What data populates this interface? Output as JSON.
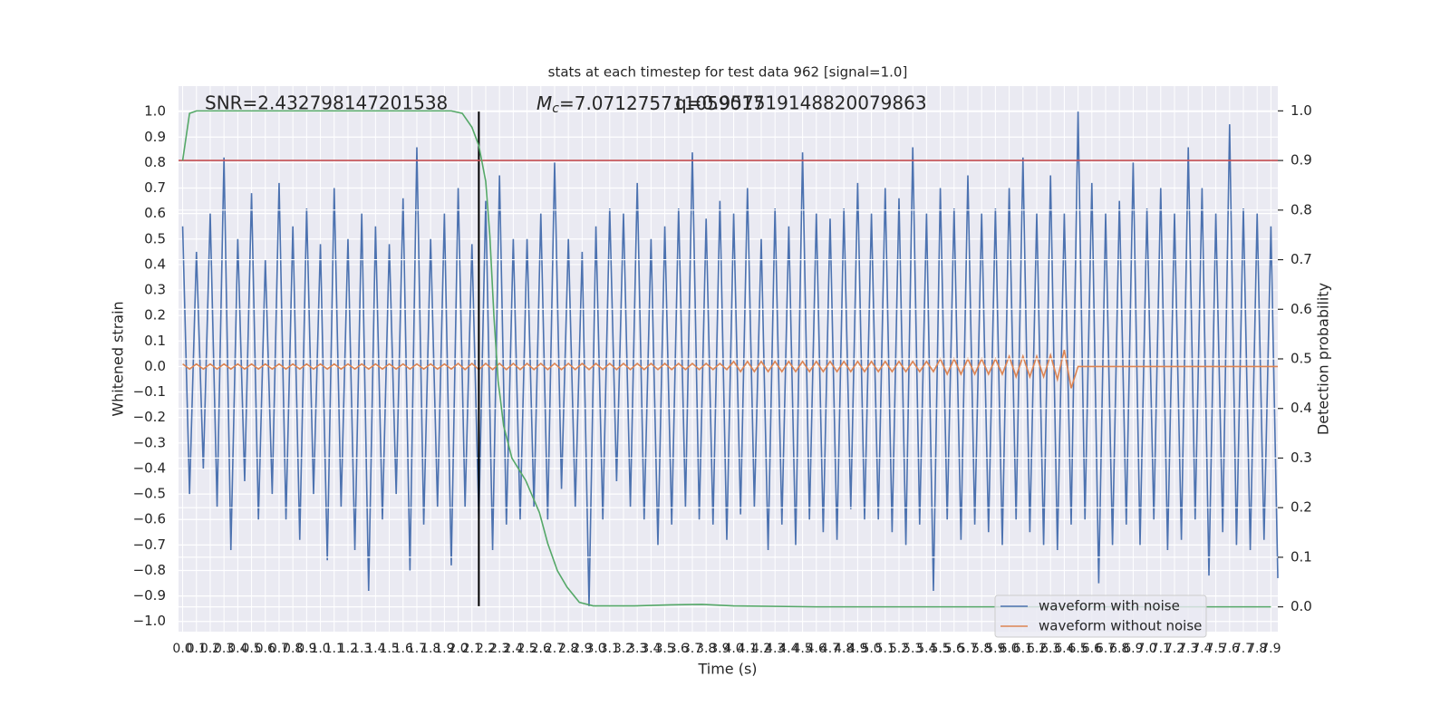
{
  "chart_data": {
    "type": "line",
    "title": "stats at each timestep for test data 962 [signal=1.0]",
    "xlabel": "Time (s)",
    "ylabel": "Whitened strain",
    "y2label": "Detection probability",
    "annotations": [
      {
        "text": "SNR=2.432798147201538"
      },
      {
        "symbol": "M",
        "subscript": "c",
        "text": "=7.071275711059017"
      },
      {
        "text": "q=0.957519148820079863"
      }
    ],
    "xlim": [
      -0.03,
      7.95
    ],
    "ylim": [
      -1.04,
      1.1
    ],
    "y2lim": [
      -0.05,
      1.05
    ],
    "grid": true,
    "legend": "lower right",
    "vline": {
      "x": 2.15,
      "color": "#000000"
    },
    "hline": {
      "y": 0.9,
      "axis": "y2",
      "color": "#c44e52"
    },
    "xticks": [
      {
        "value": 0,
        "label": "0.0"
      },
      0.1,
      0.2,
      0.3,
      0.4,
      0.5,
      0.6,
      0.7,
      0.8,
      0.9,
      {
        "value": 1,
        "label": "1.0"
      },
      1.1,
      1.2,
      1.3,
      1.4,
      1.5,
      1.6,
      1.7,
      1.8,
      1.9,
      {
        "value": 2,
        "label": "2.0"
      },
      2.1,
      2.2,
      2.3,
      2.4,
      2.5,
      2.6,
      2.7,
      2.8,
      2.9,
      {
        "value": 3,
        "label": "3.0"
      },
      3.1,
      3.2,
      3.3,
      3.4,
      3.5,
      3.6,
      3.7,
      3.8,
      3.9,
      {
        "value": 4,
        "label": "4.0"
      },
      4.1,
      4.2,
      4.3,
      4.4,
      4.5,
      4.6,
      4.7,
      4.8,
      4.9,
      {
        "value": 5,
        "label": "5.0"
      },
      5.1,
      5.2,
      5.3,
      5.4,
      5.5,
      5.6,
      5.7,
      5.8,
      5.9,
      {
        "value": 6,
        "label": "6.0"
      },
      6.1,
      6.2,
      6.3,
      6.4,
      6.5,
      6.6,
      6.7,
      6.8,
      6.9,
      {
        "value": 7,
        "label": "7.0"
      },
      7.1,
      7.2,
      7.3,
      7.4,
      7.5,
      7.6,
      7.7,
      7.8,
      7.9
    ],
    "yticks": [
      {
        "value": -1,
        "label": "−1.0"
      },
      {
        "value": -0.9,
        "label": "−0.9"
      },
      {
        "value": -0.8,
        "label": "−0.8"
      },
      {
        "value": -0.7,
        "label": "−0.7"
      },
      {
        "value": -0.6,
        "label": "−0.6"
      },
      {
        "value": -0.5,
        "label": "−0.5"
      },
      {
        "value": -0.4,
        "label": "−0.4"
      },
      {
        "value": -0.3,
        "label": "−0.3"
      },
      {
        "value": -0.2,
        "label": "−0.2"
      },
      {
        "value": -0.1,
        "label": "−0.1"
      },
      {
        "value": 0,
        "label": "0.0"
      },
      0.1,
      0.2,
      0.3,
      0.4,
      0.5,
      0.6,
      0.7,
      0.8,
      0.9,
      {
        "value": 1,
        "label": "1.0"
      }
    ],
    "y2ticks": [
      {
        "value": 0,
        "label": "0.0"
      },
      0.1,
      0.2,
      0.3,
      0.4,
      0.5,
      0.6,
      0.7,
      0.8,
      0.9,
      {
        "value": 1,
        "label": "1.0"
      }
    ],
    "x": [
      0,
      0.05,
      0.1,
      0.15,
      0.2,
      0.25,
      0.3,
      0.35,
      0.4,
      0.45,
      0.5,
      0.55,
      0.6,
      0.65,
      0.7,
      0.75,
      0.8,
      0.85,
      0.9,
      0.95,
      1,
      1.05,
      1.1,
      1.15,
      1.2,
      1.25,
      1.3,
      1.35,
      1.4,
      1.45,
      1.5,
      1.55,
      1.6,
      1.65,
      1.7,
      1.75,
      1.8,
      1.85,
      1.9,
      1.95,
      2,
      2.05,
      2.1,
      2.15,
      2.2,
      2.25,
      2.3,
      2.35,
      2.4,
      2.45,
      2.5,
      2.55,
      2.6,
      2.65,
      2.7,
      2.75,
      2.8,
      2.85,
      2.9,
      2.95,
      3,
      3.05,
      3.1,
      3.15,
      3.2,
      3.25,
      3.3,
      3.35,
      3.4,
      3.45,
      3.5,
      3.55,
      3.6,
      3.65,
      3.7,
      3.75,
      3.8,
      3.85,
      3.9,
      3.95,
      4,
      4.05,
      4.1,
      4.15,
      4.2,
      4.25,
      4.3,
      4.35,
      4.4,
      4.45,
      4.5,
      4.55,
      4.6,
      4.65,
      4.7,
      4.75,
      4.8,
      4.85,
      4.9,
      4.95,
      5,
      5.05,
      5.1,
      5.15,
      5.2,
      5.25,
      5.3,
      5.35,
      5.4,
      5.45,
      5.5,
      5.55,
      5.6,
      5.65,
      5.7,
      5.75,
      5.8,
      5.85,
      5.9,
      5.95,
      6,
      6.05,
      6.1,
      6.15,
      6.2,
      6.25,
      6.3,
      6.35,
      6.4,
      6.45,
      6.5,
      6.55,
      6.6,
      6.65,
      6.7,
      6.75,
      6.8,
      6.85,
      6.9,
      6.95,
      7,
      7.05,
      7.1,
      7.15,
      7.2,
      7.25,
      7.3,
      7.35,
      7.4,
      7.45,
      7.5,
      7.55,
      7.6,
      7.65,
      7.7,
      7.75,
      7.8,
      7.85,
      7.9,
      7.95
    ],
    "series": [
      {
        "name": "waveform with noise",
        "color": "#4c72b0",
        "values": [
          0.55,
          -0.5,
          0.45,
          -0.4,
          0.6,
          -0.55,
          0.82,
          -0.72,
          0.5,
          -0.45,
          0.68,
          -0.6,
          0.42,
          -0.5,
          0.72,
          -0.6,
          0.55,
          -0.68,
          0.62,
          -0.5,
          0.48,
          -0.76,
          0.7,
          -0.55,
          0.5,
          -0.72,
          0.6,
          -0.88,
          0.55,
          -0.6,
          0.48,
          -0.5,
          0.66,
          -0.8,
          0.86,
          -0.62,
          0.5,
          -0.55,
          0.6,
          -0.78,
          0.7,
          -0.55,
          0.48,
          -0.6,
          0.65,
          -0.72,
          0.75,
          -0.62,
          0.5,
          -0.6,
          0.5,
          -0.55,
          0.6,
          -0.6,
          0.8,
          -0.48,
          0.5,
          -0.55,
          0.45,
          -0.94,
          0.55,
          -0.6,
          0.62,
          -0.45,
          0.6,
          -0.55,
          0.72,
          -0.6,
          0.5,
          -0.7,
          0.55,
          -0.62,
          0.62,
          -0.55,
          0.84,
          -0.6,
          0.58,
          -0.62,
          0.65,
          -0.68,
          0.6,
          -0.58,
          0.7,
          -0.55,
          0.5,
          -0.72,
          0.62,
          -0.62,
          0.55,
          -0.7,
          0.84,
          -0.6,
          0.6,
          -0.65,
          0.58,
          -0.68,
          0.62,
          -0.56,
          0.72,
          -0.6,
          0.6,
          -0.6,
          0.7,
          -0.65,
          0.66,
          -0.7,
          0.86,
          -0.62,
          0.6,
          -0.88,
          0.7,
          -0.6,
          0.62,
          -0.68,
          0.75,
          -0.62,
          0.6,
          -0.65,
          0.62,
          -0.7,
          0.7,
          -0.6,
          0.82,
          -0.65,
          0.6,
          -0.7,
          0.75,
          -0.72,
          0.6,
          -0.62,
          1.0,
          -0.6,
          0.72,
          -0.85,
          0.6,
          -0.7,
          0.65,
          -0.62,
          0.8,
          -0.7,
          0.62,
          -0.6,
          0.7,
          -0.72,
          0.6,
          -0.68,
          0.86,
          -0.6,
          0.7,
          -0.82,
          0.6,
          -0.65,
          0.95,
          -0.7,
          0.62,
          -0.72,
          0.6,
          -0.68,
          0.55,
          -0.83
        ]
      },
      {
        "name": "waveform without noise",
        "color": "#dd8452",
        "values": [
          0.01,
          -0.01,
          0.01,
          -0.01,
          0.01,
          -0.01,
          0.01,
          -0.01,
          0.01,
          -0.01,
          0.01,
          -0.01,
          0.01,
          -0.01,
          0.01,
          -0.01,
          0.01,
          -0.01,
          0.01,
          -0.01,
          0.01,
          -0.01,
          0.01,
          -0.01,
          0.01,
          -0.01,
          0.01,
          -0.01,
          0.01,
          -0.01,
          0.01,
          -0.01,
          0.01,
          -0.01,
          0.01,
          -0.01,
          0.01,
          -0.01,
          0.01,
          -0.01,
          0.012,
          -0.012,
          0.012,
          -0.012,
          0.012,
          -0.012,
          0.012,
          -0.012,
          0.012,
          -0.012,
          0.012,
          -0.012,
          0.012,
          -0.012,
          0.012,
          -0.012,
          0.012,
          -0.012,
          0.012,
          -0.012,
          0.012,
          -0.012,
          0.012,
          -0.012,
          0.012,
          -0.012,
          0.012,
          -0.012,
          0.012,
          -0.012,
          0.012,
          -0.012,
          0.012,
          -0.012,
          0.012,
          -0.012,
          0.012,
          -0.012,
          0.012,
          -0.012,
          0.02,
          -0.02,
          0.02,
          -0.02,
          0.02,
          -0.02,
          0.02,
          -0.02,
          0.02,
          -0.02,
          0.02,
          -0.02,
          0.02,
          -0.02,
          0.02,
          -0.02,
          0.02,
          -0.02,
          0.02,
          -0.02,
          0.02,
          -0.02,
          0.02,
          -0.02,
          0.02,
          -0.02,
          0.02,
          -0.02,
          0.02,
          -0.02,
          0.03,
          -0.03,
          0.03,
          -0.03,
          0.03,
          -0.03,
          0.03,
          -0.03,
          0.03,
          -0.03,
          0.04,
          -0.04,
          0.04,
          -0.04,
          0.04,
          -0.04,
          0.045,
          -0.05,
          0.065,
          -0.085,
          0,
          0,
          0,
          0,
          0,
          0,
          0,
          0,
          0,
          0,
          0,
          0,
          0,
          0,
          0,
          0,
          0,
          0,
          0,
          0,
          0,
          0,
          0,
          0,
          0,
          0,
          0,
          0,
          0,
          0
        ]
      },
      {
        "color": "#55a868",
        "axis": "y2",
        "x": [
          0,
          0.05,
          0.1,
          1.95,
          2.03,
          2.1,
          2.15,
          2.2,
          2.23,
          2.26,
          2.29,
          2.33,
          2.39,
          2.49,
          2.59,
          2.65,
          2.72,
          2.79,
          2.88,
          2.98,
          3.28,
          3.54,
          3.77,
          4.0,
          4.6,
          7.9
        ],
        "values": [
          0.9,
          0.995,
          1.0,
          1.0,
          0.995,
          0.967,
          0.93,
          0.858,
          0.748,
          0.584,
          0.456,
          0.365,
          0.3,
          0.255,
          0.19,
          0.128,
          0.073,
          0.04,
          0.009,
          0.002,
          0.002,
          0.004,
          0.005,
          0.002,
          0.0,
          0.0
        ]
      }
    ]
  }
}
